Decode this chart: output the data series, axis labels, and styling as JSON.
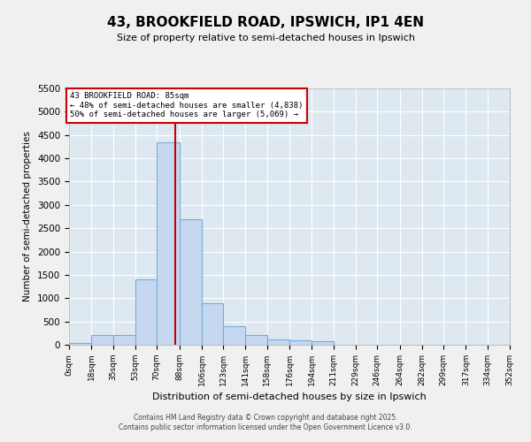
{
  "title": "43, BROOKFIELD ROAD, IPSWICH, IP1 4EN",
  "subtitle": "Size of property relative to semi-detached houses in Ipswich",
  "xlabel": "Distribution of semi-detached houses by size in Ipswich",
  "ylabel": "Number of semi-detached properties",
  "bins": [
    0,
    18,
    35,
    53,
    70,
    88,
    106,
    123,
    141,
    158,
    176,
    194,
    211,
    229,
    246,
    264,
    282,
    299,
    317,
    334,
    352
  ],
  "bin_labels": [
    "0sqm",
    "18sqm",
    "35sqm",
    "53sqm",
    "70sqm",
    "88sqm",
    "106sqm",
    "123sqm",
    "141sqm",
    "158sqm",
    "176sqm",
    "194sqm",
    "211sqm",
    "229sqm",
    "246sqm",
    "264sqm",
    "282sqm",
    "299sqm",
    "317sqm",
    "334sqm",
    "352sqm"
  ],
  "counts": [
    30,
    200,
    200,
    1400,
    4350,
    2700,
    900,
    400,
    200,
    120,
    100,
    80,
    0,
    0,
    0,
    0,
    0,
    0,
    0,
    0
  ],
  "bar_color": "#c5d8f0",
  "bar_edge_color": "#7aabda",
  "property_value": 85,
  "property_label": "43 BROOKFIELD ROAD: 85sqm",
  "smaller_pct": 48,
  "smaller_count": 4838,
  "larger_pct": 50,
  "larger_count": 5069,
  "vline_color": "#cc0000",
  "ylim": [
    0,
    5500
  ],
  "yticks": [
    0,
    500,
    1000,
    1500,
    2000,
    2500,
    3000,
    3500,
    4000,
    4500,
    5000,
    5500
  ],
  "bg_color": "#dde8f0",
  "fig_bg_color": "#f0f0f0",
  "footer_line1": "Contains HM Land Registry data © Crown copyright and database right 2025.",
  "footer_line2": "Contains public sector information licensed under the Open Government Licence v3.0."
}
